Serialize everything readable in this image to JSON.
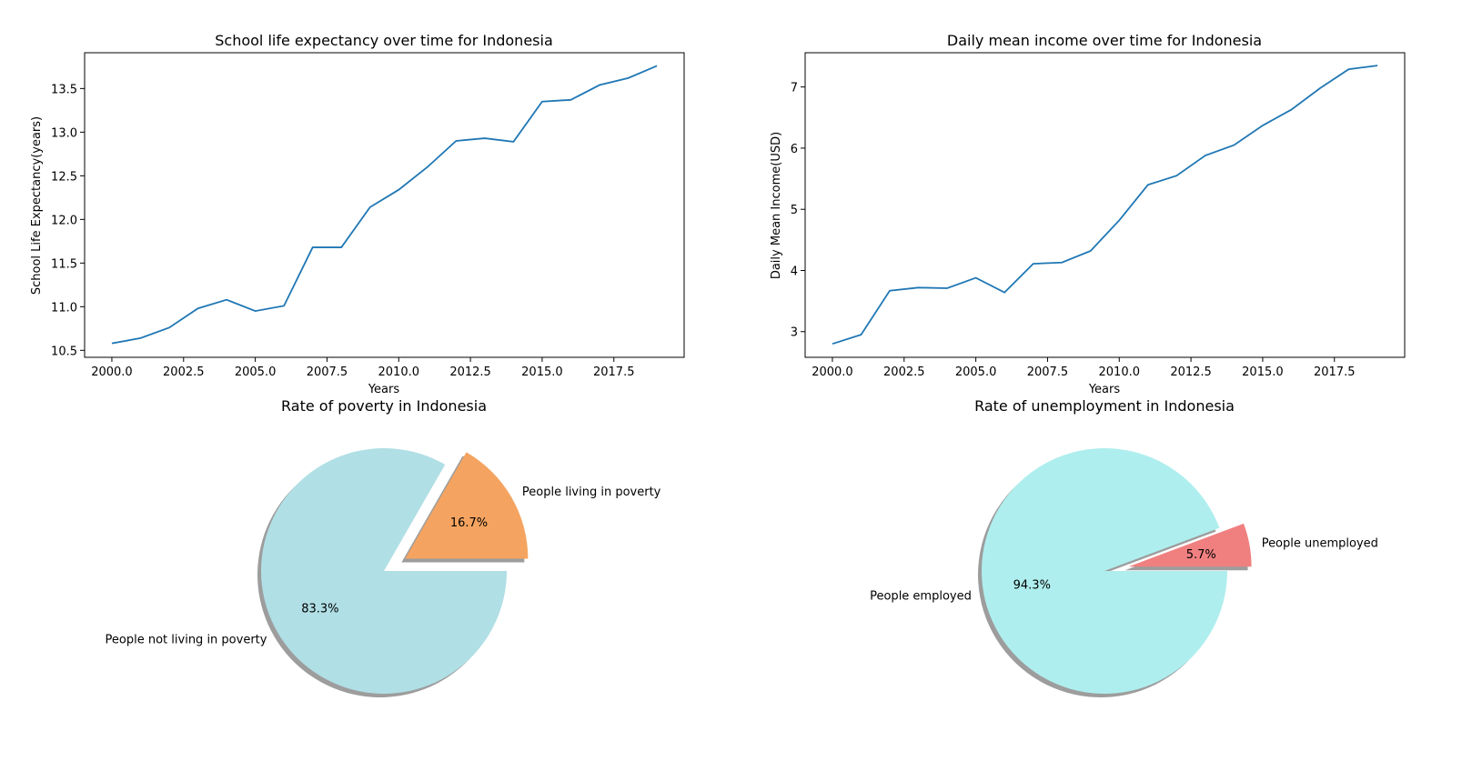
{
  "colors": {
    "line": "#1f77b4",
    "poverty_yes": "#f4a460",
    "poverty_no": "#b0dfe5",
    "unemployed": "#f08080",
    "employed": "#afeeee",
    "shadow": "#8c8c8c"
  },
  "chart_data": [
    {
      "type": "line",
      "title": "School life expectancy over time for Indonesia",
      "xlabel": "Years",
      "ylabel": "School Life Expectancy(years)",
      "xlim": [
        1999.05,
        2019.95
      ],
      "ylim": [
        10.42,
        13.91
      ],
      "xticks": [
        2000.0,
        2002.5,
        2005.0,
        2007.5,
        2010.0,
        2012.5,
        2015.0,
        2017.5
      ],
      "xtick_labels": [
        "2000.0",
        "2002.5",
        "2005.0",
        "2007.5",
        "2010.0",
        "2012.5",
        "2015.0",
        "2017.5"
      ],
      "yticks": [
        10.5,
        11.0,
        11.5,
        12.0,
        12.5,
        13.0,
        13.5
      ],
      "ytick_labels": [
        "10.5",
        "11.0",
        "11.5",
        "12.0",
        "12.5",
        "13.0",
        "13.5"
      ],
      "grid": false,
      "x": [
        2000,
        2001,
        2002,
        2003,
        2004,
        2005,
        2006,
        2007,
        2008,
        2009,
        2010,
        2011,
        2012,
        2013,
        2014,
        2015,
        2016,
        2017,
        2018,
        2019
      ],
      "series": [
        {
          "values": [
            10.58,
            10.64,
            10.76,
            10.98,
            11.08,
            10.95,
            11.01,
            11.68,
            11.68,
            12.14,
            12.34,
            12.6,
            12.9,
            12.93,
            12.89,
            13.35,
            13.37,
            13.54,
            13.62,
            13.76
          ]
        }
      ]
    },
    {
      "type": "line",
      "title": "Daily mean income over time for Indonesia",
      "xlabel": "Years",
      "ylabel": "Daily Mean Income(USD)",
      "xlim": [
        1999.05,
        2019.95
      ],
      "ylim": [
        2.58,
        7.56
      ],
      "xticks": [
        2000.0,
        2002.5,
        2005.0,
        2007.5,
        2010.0,
        2012.5,
        2015.0,
        2017.5
      ],
      "xtick_labels": [
        "2000.0",
        "2002.5",
        "2005.0",
        "2007.5",
        "2010.0",
        "2012.5",
        "2015.0",
        "2017.5"
      ],
      "yticks": [
        3,
        4,
        5,
        6,
        7
      ],
      "ytick_labels": [
        "3",
        "4",
        "5",
        "6",
        "7"
      ],
      "grid": false,
      "x": [
        2000,
        2001,
        2002,
        2003,
        2004,
        2005,
        2006,
        2007,
        2008,
        2009,
        2010,
        2011,
        2012,
        2013,
        2014,
        2015,
        2016,
        2017,
        2018,
        2019
      ],
      "series": [
        {
          "values": [
            2.8,
            2.95,
            3.67,
            3.72,
            3.71,
            3.88,
            3.64,
            4.11,
            4.13,
            4.32,
            4.82,
            5.4,
            5.55,
            5.88,
            6.05,
            6.37,
            6.63,
            6.98,
            7.29,
            7.35
          ]
        }
      ]
    },
    {
      "type": "pie",
      "title": "Rate of poverty in Indonesia",
      "shadow": true,
      "slices": [
        {
          "label": "People living in poverty",
          "value": 16.7,
          "pct_label": "16.7%",
          "explode": 0.2,
          "color": "#f4a460"
        },
        {
          "label": "People not living in poverty",
          "value": 83.3,
          "pct_label": "83.3%",
          "explode": 0,
          "color": "#b0dfe5"
        }
      ]
    },
    {
      "type": "pie",
      "title": "Rate of unemployment in Indonesia",
      "shadow": true,
      "slices": [
        {
          "label": "People unemployed",
          "value": 5.7,
          "pct_label": "5.7%",
          "explode": 0.2,
          "color": "#f08080"
        },
        {
          "label": "People employed",
          "value": 94.3,
          "pct_label": "94.3%",
          "explode": 0,
          "color": "#afeeee"
        }
      ]
    }
  ]
}
